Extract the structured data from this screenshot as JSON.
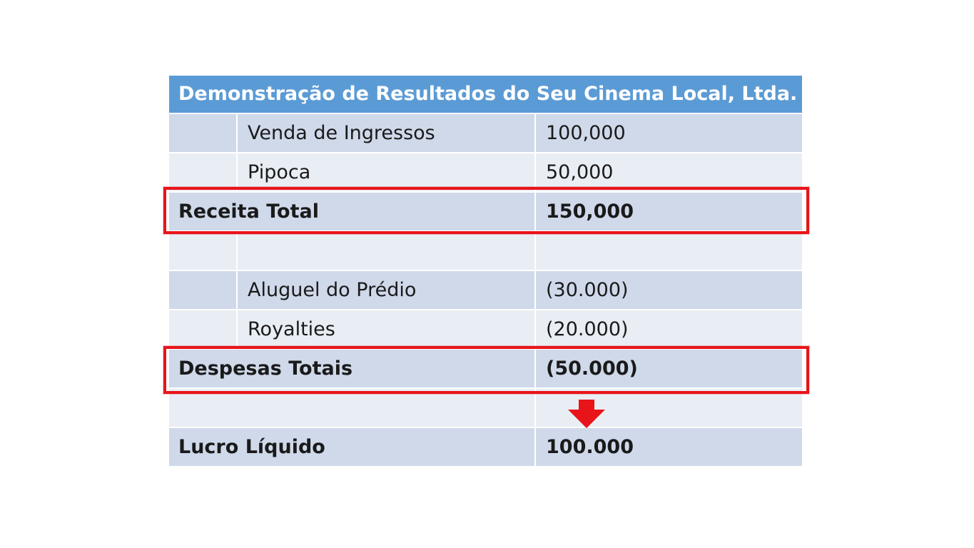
{
  "title": "Demonstração de Resultados do Seu Cinema Local, Ltda.",
  "rows": [
    {
      "label": "Venda de Ingressos",
      "value": "100,000"
    },
    {
      "label": "Pipoca",
      "value": "50,000"
    },
    {
      "label": "Receita Total",
      "value": "150,000"
    },
    {
      "label": "",
      "value": ""
    },
    {
      "label": "Aluguel do Prédio",
      "value": "(30.000)"
    },
    {
      "label": "Royalties",
      "value": "(20.000)"
    },
    {
      "label": "Despesas Totais",
      "value": "(50.000)"
    },
    {
      "label": "",
      "value": ""
    },
    {
      "label": "Lucro Líquido",
      "value": "100.000"
    }
  ],
  "colors": {
    "header": "#5b9bd5",
    "row_dark": "#cfd9ea",
    "row_light": "#e9edf4",
    "highlight": "#e8141a",
    "arrow": "#e8141a"
  },
  "icons": {
    "arrow": "down-arrow-icon"
  }
}
